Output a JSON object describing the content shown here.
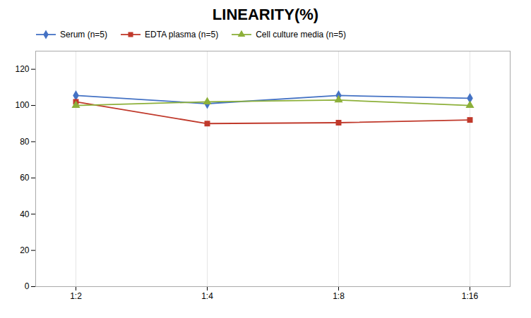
{
  "chart_data": {
    "type": "line",
    "title": "LINEARITY(%)",
    "categories": [
      "1:2",
      "1:4",
      "1:8",
      "1:16"
    ],
    "series": [
      {
        "name": "Serum (n=5)",
        "color": "#4472C4",
        "marker": "diamond",
        "values": [
          105.5,
          101.0,
          105.5,
          104.0
        ]
      },
      {
        "name": "EDTA plasma (n=5)",
        "color": "#C0392B",
        "marker": "square",
        "values": [
          102.0,
          90.0,
          90.5,
          92.0
        ]
      },
      {
        "name": "Cell culture media (n=5)",
        "color": "#8DB03A",
        "marker": "triangle",
        "values": [
          100.0,
          102.0,
          103.0,
          100.0
        ]
      }
    ],
    "ylim": [
      0,
      130
    ],
    "yticks": [
      0,
      20,
      40,
      60,
      80,
      100,
      120
    ],
    "grid": true,
    "legend": "top"
  }
}
